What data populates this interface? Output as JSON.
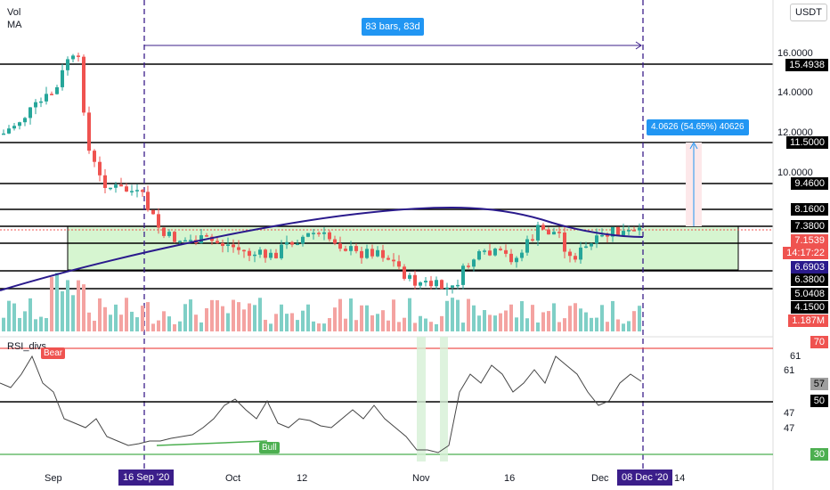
{
  "currency_button": "USDT",
  "legend": {
    "vol": "Vol",
    "ma": "MA"
  },
  "rsi_legend": "RSI_divs",
  "range_label": "83 bars, 83d",
  "measure_label": "4.0626 (54.65%) 40626",
  "price_axis_ticks": [
    "16.0000",
    "14.0000",
    "12.0000",
    "10.0000"
  ],
  "price_badges": [
    {
      "label": "15.4938",
      "style": "black"
    },
    {
      "label": "11.5000",
      "style": "black"
    },
    {
      "label": "9.4600",
      "style": "black"
    },
    {
      "label": "8.1600",
      "style": "black"
    },
    {
      "label": "7.3800",
      "style": "black"
    },
    {
      "label": "7.1539",
      "style": "red"
    },
    {
      "label": "14:17:22",
      "style": "red"
    },
    {
      "label": "6.6903",
      "style": "purple"
    },
    {
      "label": "6.3800",
      "style": "black"
    },
    {
      "label": "5.0408",
      "style": "black"
    },
    {
      "label": "4.1500",
      "style": "black"
    },
    {
      "label": "1.187M",
      "style": "red"
    }
  ],
  "rsi_axis_ticks": [
    "61",
    "61",
    "47",
    "47"
  ],
  "rsi_badges": [
    {
      "label": "70",
      "style": "red"
    },
    {
      "label": "57",
      "style": "gray"
    },
    {
      "label": "50",
      "style": "black"
    },
    {
      "label": "30",
      "style": "green"
    }
  ],
  "bear_label": "Bear",
  "bull_label": "Bull",
  "time_axis": [
    "Sep",
    "Oct",
    "12",
    "Nov",
    "16",
    "Dec",
    "14"
  ],
  "time_badges": [
    "16 Sep '20",
    "08 Dec '20"
  ],
  "colors": {
    "up": "#26a69a",
    "down": "#ef5350",
    "ma": "#2a1a8c",
    "zone": "#d6f5d0",
    "rsi": "#444"
  },
  "rsi_range": {
    "upper": 70,
    "mid": 50,
    "lower": 30
  }
}
